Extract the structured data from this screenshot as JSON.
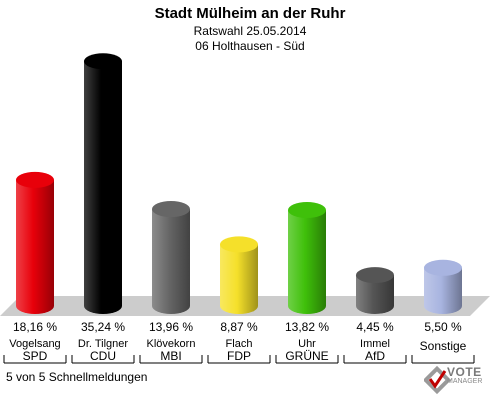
{
  "header": {
    "title": "Stadt Mülheim an der Ruhr",
    "subtitle": "Ratswahl 25.05.2014",
    "district": "06 Holthausen - Süd"
  },
  "footer": {
    "status": "5 von 5 Schnellmeldungen"
  },
  "logo": {
    "line1": "VOTE",
    "line2": "MANAGER"
  },
  "colors": {
    "SPD": "#e8000a",
    "CDU": "#000000",
    "MBI": "#666666",
    "FDP": "#f5e02a",
    "GRUENE": "#3fc00a",
    "AfD": "#555555",
    "Sonstige": "#a8b4e0"
  },
  "chart_data": {
    "type": "bar",
    "title": "",
    "xlabel": "",
    "ylabel": "",
    "ylim": [
      0,
      36
    ],
    "categories": [
      "SPD",
      "CDU",
      "MBI",
      "FDP",
      "GRÜNE",
      "AfD",
      "Sonstige"
    ],
    "candidates": [
      "Vogelsang",
      "Dr. Tilgner",
      "Klövekorn",
      "Flach",
      "Uhr",
      "Immel",
      ""
    ],
    "values": [
      18.16,
      35.24,
      13.96,
      8.87,
      13.82,
      4.45,
      5.5
    ],
    "value_labels": [
      "18,16 %",
      "35,24 %",
      "13,96 %",
      "8,87 %",
      "13,82 %",
      "4,45 %",
      "5,50 %"
    ],
    "color_keys": [
      "SPD",
      "CDU",
      "MBI",
      "FDP",
      "GRUENE",
      "AfD",
      "Sonstige"
    ]
  }
}
